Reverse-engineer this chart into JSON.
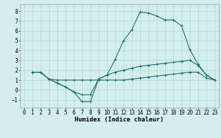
{
  "xlabel": "Humidex (Indice chaleur)",
  "background_color": "#d4eeec",
  "grid_color": "#aed4d2",
  "line_color": "#1a6b6b",
  "xlim": [
    -0.5,
    23.5
  ],
  "ylim": [
    -1.8,
    8.7
  ],
  "xticks": [
    0,
    1,
    2,
    3,
    4,
    5,
    6,
    7,
    8,
    9,
    10,
    11,
    12,
    13,
    14,
    15,
    16,
    17,
    18,
    19,
    20,
    21,
    22,
    23
  ],
  "yticks": [
    -1,
    0,
    1,
    2,
    3,
    4,
    5,
    6,
    7,
    8
  ],
  "line1_x": [
    1,
    2,
    3,
    4,
    5,
    6,
    7,
    8,
    9,
    10,
    11,
    12,
    13,
    14,
    15,
    16,
    17,
    18,
    19,
    20,
    21,
    22,
    23
  ],
  "line1_y": [
    1.8,
    1.8,
    1.1,
    0.7,
    0.3,
    -0.2,
    -1.2,
    -1.2,
    1.1,
    1.5,
    3.1,
    5.0,
    6.1,
    7.9,
    7.8,
    7.5,
    7.1,
    7.1,
    6.5,
    4.1,
    2.6,
    1.5,
    1.0
  ],
  "line2_x": [
    1,
    2,
    3,
    4,
    5,
    6,
    7,
    8,
    9,
    10,
    11,
    12,
    13,
    14,
    15,
    16,
    17,
    18,
    19,
    20,
    21,
    22,
    23
  ],
  "line2_y": [
    1.8,
    1.8,
    1.1,
    0.7,
    0.3,
    -0.2,
    -0.5,
    -0.5,
    1.1,
    1.5,
    1.8,
    2.0,
    2.2,
    2.4,
    2.5,
    2.6,
    2.7,
    2.8,
    2.9,
    3.0,
    2.5,
    1.5,
    1.0
  ],
  "line3_x": [
    1,
    2,
    3,
    4,
    5,
    6,
    7,
    8,
    9,
    10,
    11,
    12,
    13,
    14,
    15,
    16,
    17,
    18,
    19,
    20,
    21,
    22,
    23
  ],
  "line3_y": [
    1.8,
    1.8,
    1.1,
    1.0,
    1.0,
    1.0,
    1.0,
    1.0,
    1.0,
    1.0,
    1.0,
    1.0,
    1.1,
    1.2,
    1.3,
    1.4,
    1.5,
    1.6,
    1.7,
    1.8,
    1.8,
    1.2,
    1.0
  ],
  "xlabel_fontsize": 6.5,
  "tick_fontsize": 5.5
}
